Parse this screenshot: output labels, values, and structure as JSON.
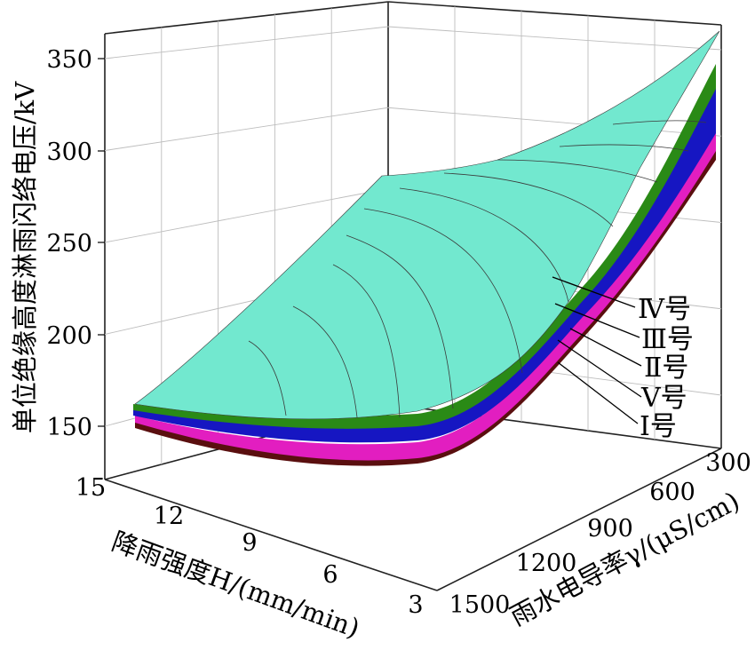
{
  "chart_data": {
    "type": "surface-3d",
    "zlabel": "单位绝缘高度淋雨闪络电压/kV",
    "xlabel": "降雨强度H/(mm/min)",
    "ylabel": "雨水电导率γ/(μS/cm)",
    "z_ticks": [
      "150",
      "200",
      "250",
      "300",
      "350"
    ],
    "x_ticks": [
      "15",
      "12",
      "9",
      "6",
      "3"
    ],
    "y_ticks": [
      "300",
      "600",
      "900",
      "1200",
      "1500"
    ],
    "zlim": [
      130,
      360
    ],
    "xlim": [
      3,
      15
    ],
    "ylim": [
      300,
      1500
    ],
    "grid": true,
    "series": [
      {
        "name": "Ⅳ号",
        "color": "#72e8cf",
        "z_at_H3_gamma300": 355,
        "z_at_H15_gamma300": 158,
        "z_at_H3_gamma1500": 283,
        "z_at_H15_gamma1500": 156,
        "z_min": 150
      },
      {
        "name": "Ⅲ号",
        "color": "#2a8a16",
        "z_at_H3_gamma300": 336,
        "z_at_H15_gamma300": 153,
        "z_at_H15_gamma1500": 152
      },
      {
        "name": "Ⅱ号",
        "color": "#1616c2",
        "z_at_H3_gamma300": 330,
        "z_at_H15_gamma300": 150,
        "z_at_H15_gamma1500": 150
      },
      {
        "name": "Ⅴ号",
        "color": "#e21ec0",
        "z_at_H3_gamma300": 316,
        "z_at_H15_gamma300": 144,
        "z_at_H15_gamma1500": 147
      },
      {
        "name": "Ⅰ号",
        "color": "#5a0f0f",
        "z_at_H3_gamma300": 310,
        "z_at_H15_gamma300": 141,
        "z_at_H15_gamma1500": 146
      }
    ]
  }
}
